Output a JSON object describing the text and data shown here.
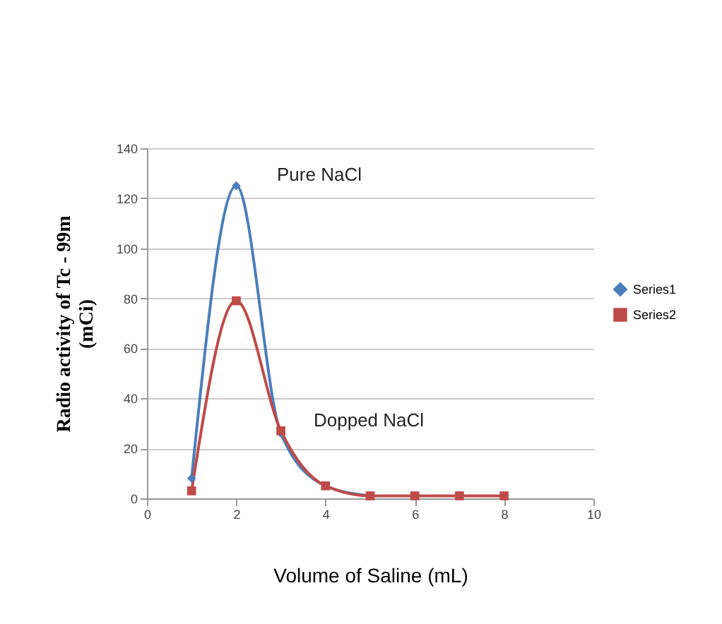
{
  "chart_data": {
    "type": "line",
    "xlabel": "Volume of  Saline (mL)",
    "ylabel": "Radio activity of Tc - 99m (mCi)",
    "x": [
      1,
      2,
      3,
      4,
      5,
      6,
      7,
      8
    ],
    "series": [
      {
        "name": "Series1",
        "color": "#4a7ebb",
        "marker": "diamond",
        "values": [
          8,
          125,
          26,
          5,
          1,
          null,
          null,
          null
        ]
      },
      {
        "name": "Series2",
        "color": "#be4b48",
        "marker": "square",
        "values": [
          3,
          79,
          27,
          5,
          1,
          1,
          1,
          1
        ]
      }
    ],
    "xlim": [
      0,
      10
    ],
    "xticks": [
      0,
      2,
      4,
      6,
      8,
      10
    ],
    "ylim": [
      0,
      140
    ],
    "yticks": [
      0,
      20,
      40,
      60,
      80,
      100,
      120,
      140
    ],
    "annotations": [
      "Pure NaCl",
      "Dopped NaCl"
    ],
    "grid": "y",
    "legend": "right"
  }
}
